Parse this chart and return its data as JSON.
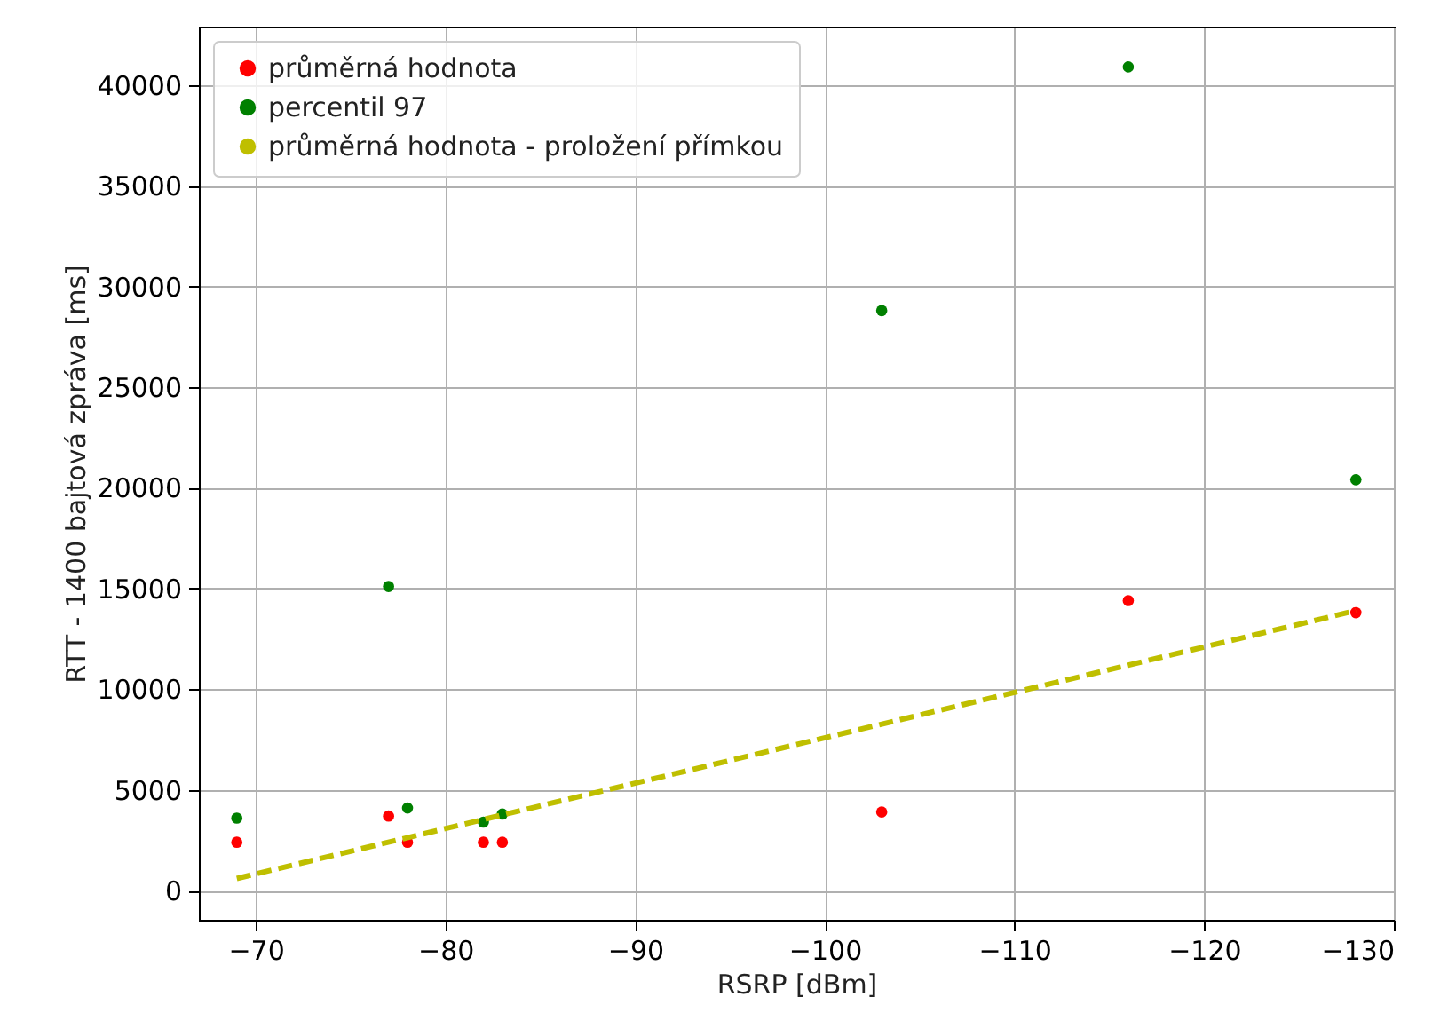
{
  "chart_data": {
    "type": "scatter",
    "xlabel": "RSRP [dBm]",
    "ylabel": "RTT - 1400 bajtová zpráva [ms]",
    "x": [
      -69,
      -77,
      -78,
      -82,
      -83,
      -103,
      -116,
      -128
    ],
    "series": [
      {
        "name": "průměrná hodnota",
        "color": "#ff0000",
        "values": [
          2400,
          3700,
          2400,
          2400,
          2400,
          3900,
          14400,
          13800
        ]
      },
      {
        "name": "percentil 97",
        "color": "#008000",
        "values": [
          3600,
          15100,
          4100,
          3400,
          3800,
          28800,
          40900,
          20400
        ]
      },
      {
        "name": "průměrná hodnota - proložení přímkou",
        "type": "line",
        "color": "#bfbf00",
        "line_style": "dashed",
        "marker": "none",
        "x": [
          -69,
          -128
        ],
        "values": [
          600,
          13900
        ]
      }
    ],
    "xlim": [
      -67,
      -130
    ],
    "xticks": [
      -70,
      -80,
      -90,
      -100,
      -110,
      -120,
      -130
    ],
    "ylim": [
      -1450,
      42900
    ],
    "yticks": [
      0,
      5000,
      10000,
      15000,
      20000,
      25000,
      30000,
      35000,
      40000
    ],
    "grid": true,
    "legend": "top left",
    "marker": "circle"
  }
}
